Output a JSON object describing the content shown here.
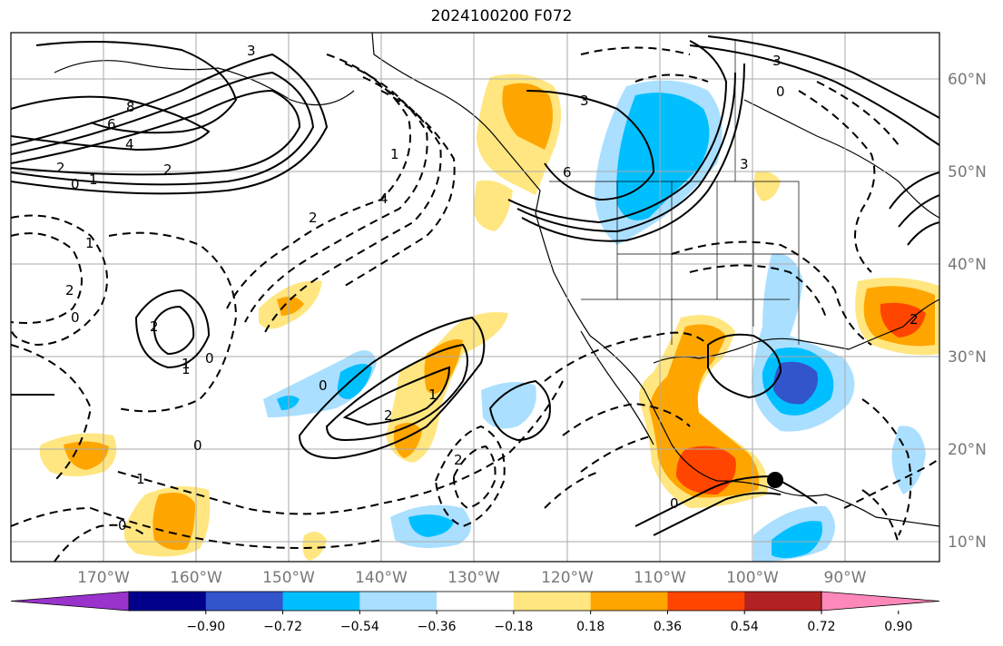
{
  "title": "2024100200 F072",
  "map": {
    "projection": "PlateCarree",
    "lon_range": [
      -180,
      -80
    ],
    "lat_range": [
      8,
      65
    ],
    "lon_ticks": [
      "170°W",
      "160°W",
      "150°W",
      "140°W",
      "130°W",
      "120°W",
      "110°W",
      "100°W",
      "90°W"
    ],
    "lat_ticks": [
      "60°N",
      "50°N",
      "40°N",
      "30°N",
      "20°N",
      "10°N"
    ],
    "marker": {
      "lon": -97,
      "lat": 17,
      "color": "#000000"
    }
  },
  "colorbar": {
    "colors": [
      "#9933cc",
      "#00008b",
      "#3355cc",
      "#00bfff",
      "#aadfff",
      "#ffffff",
      "#ffe680",
      "#ffa500",
      "#ff4500",
      "#b22222",
      "#ff88bb"
    ],
    "tick_labels": [
      "−0.90",
      "−0.72",
      "−0.54",
      "−0.36",
      "−0.18",
      "0.18",
      "0.36",
      "0.54",
      "0.72",
      "0.90"
    ]
  },
  "contour_labels": [
    "8",
    "6",
    "4",
    "2",
    "1",
    "0",
    "3",
    "1",
    "2",
    "2",
    "1",
    "0",
    "2",
    "3",
    "6",
    "3",
    "0",
    "2",
    "4",
    "3",
    "2",
    "1",
    "0",
    "2",
    "0",
    "1",
    "2",
    "1",
    "0",
    "1",
    "0",
    "0"
  ],
  "legend_colors": {
    "land_line": "#000000",
    "grid": "#aaaaaa",
    "label": "#777777"
  }
}
